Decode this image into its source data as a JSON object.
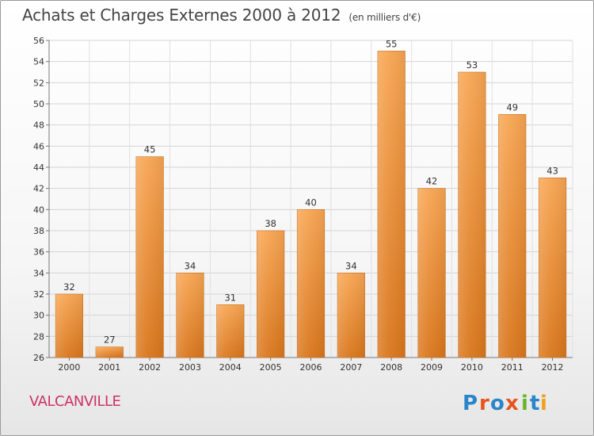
{
  "chart_data": {
    "type": "bar",
    "title": "Achats et Charges Externes 2000 à 2012",
    "subtitle": "(en milliers d'€)",
    "categories": [
      "2000",
      "2001",
      "2002",
      "2003",
      "2004",
      "2005",
      "2006",
      "2007",
      "2008",
      "2009",
      "2010",
      "2011",
      "2012"
    ],
    "values": [
      32,
      27,
      45,
      34,
      31,
      38,
      40,
      34,
      55,
      42,
      53,
      49,
      43
    ],
    "ylim": [
      26,
      56
    ],
    "yticks": [
      26,
      28,
      30,
      32,
      34,
      36,
      38,
      40,
      42,
      44,
      46,
      48,
      50,
      52,
      54,
      56
    ],
    "grid": true,
    "bar_color_top": "#f7a552",
    "bar_color_bottom": "#d9761c",
    "xlabel": "",
    "ylabel": ""
  },
  "commune": "VALCANVILLE",
  "logo": {
    "text": "Proxiti",
    "letters": [
      "P",
      "r",
      "o",
      "x",
      "i",
      "t",
      "i"
    ],
    "colors": [
      "#2a86c8",
      "#e8531c",
      "#2a86c8",
      "#e8531c",
      "#6ab42d",
      "#2a86c8",
      "#f0a020"
    ]
  }
}
